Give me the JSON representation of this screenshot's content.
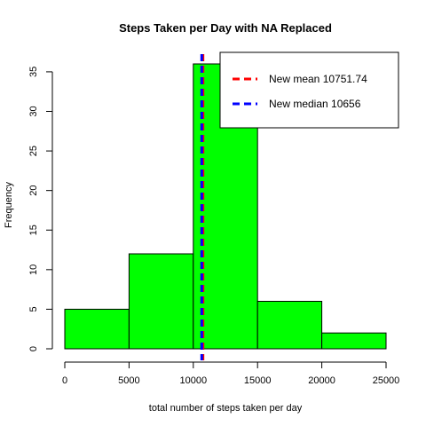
{
  "chart_data": {
    "type": "bar",
    "title": "Steps Taken per Day with NA Replaced",
    "xlabel": "total number of steps taken per day",
    "ylabel": "Frequency",
    "bins": [
      {
        "start": 0,
        "end": 5000,
        "count": 5
      },
      {
        "start": 5000,
        "end": 10000,
        "count": 12
      },
      {
        "start": 10000,
        "end": 15000,
        "count": 36
      },
      {
        "start": 15000,
        "end": 20000,
        "count": 6
      },
      {
        "start": 20000,
        "end": 25000,
        "count": 2
      }
    ],
    "xlim": [
      0,
      25000
    ],
    "ylim": [
      0,
      36
    ],
    "x_ticks": [
      0,
      5000,
      10000,
      15000,
      20000,
      25000
    ],
    "y_ticks": [
      0,
      5,
      10,
      15,
      20,
      25,
      30,
      35
    ],
    "bar_color": "#00ff00",
    "grid": false,
    "lines": [
      {
        "name": "New mean 10751.74",
        "x": 10751.74,
        "color": "#ff0000",
        "style": "dashed"
      },
      {
        "name": "New median 10656",
        "x": 10656,
        "color": "#0000ff",
        "style": "dashed"
      }
    ],
    "legend": {
      "placement": "top-right",
      "entries": [
        "New mean 10751.74",
        "New median 10656"
      ]
    }
  }
}
